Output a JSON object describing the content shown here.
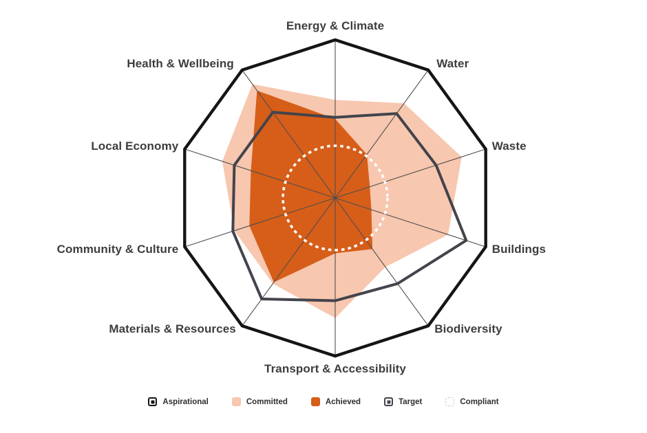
{
  "chart_data": {
    "type": "radar",
    "title": "",
    "categories": [
      "Energy & Climate",
      "Water",
      "Waste",
      "Buildings",
      "Biodiversity",
      "Transport & Accessibility",
      "Materials & Resources",
      "Community & Culture",
      "Local Economy",
      "Health & Wellbeing"
    ],
    "scale": {
      "min": 0,
      "max": 1
    },
    "grid": "radial-spokes-only",
    "legend_position": "bottom",
    "series": [
      {
        "name": "Aspirational",
        "style": "outline",
        "color": "#151515",
        "values": [
          1,
          1,
          1,
          1,
          1,
          1,
          1,
          1,
          1,
          1
        ]
      },
      {
        "name": "Committed",
        "style": "fill",
        "color": "#f7c7af",
        "values": [
          0.62,
          0.74,
          0.84,
          0.75,
          0.54,
          0.76,
          0.67,
          0.67,
          0.75,
          0.89
        ]
      },
      {
        "name": "Achieved",
        "style": "fill",
        "color": "#d65e18",
        "values": [
          0.5,
          0.34,
          0.23,
          0.24,
          0.4,
          0.35,
          0.66,
          0.57,
          0.56,
          0.84
        ]
      },
      {
        "name": "Target",
        "style": "outline",
        "color": "#43444c",
        "values": [
          0.51,
          0.66,
          0.67,
          0.87,
          0.67,
          0.65,
          0.79,
          0.68,
          0.67,
          0.67
        ]
      },
      {
        "name": "Compliant",
        "style": "dashed-circle",
        "color": "#ffffff",
        "radius": 0.33
      }
    ]
  }
}
